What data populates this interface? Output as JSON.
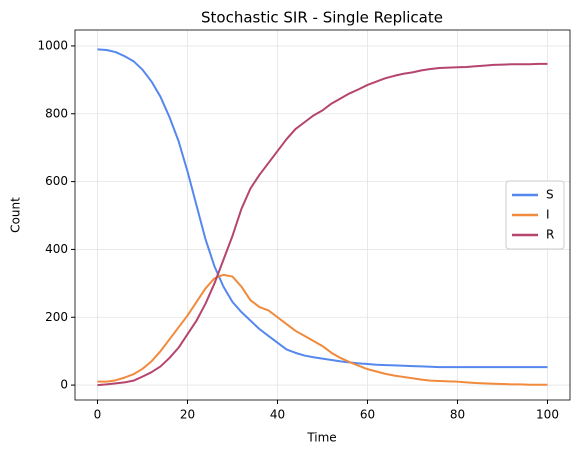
{
  "chart_data": {
    "type": "line",
    "title": "Stochastic SIR - Single Replicate",
    "x_label": "Time",
    "y_label": "Count",
    "x": [
      0,
      2,
      4,
      6,
      8,
      10,
      12,
      14,
      16,
      18,
      20,
      22,
      24,
      26,
      28,
      30,
      32,
      34,
      36,
      38,
      40,
      42,
      44,
      46,
      48,
      50,
      52,
      54,
      56,
      58,
      60,
      62,
      64,
      66,
      68,
      70,
      72,
      74,
      76,
      78,
      80,
      82,
      84,
      86,
      88,
      90,
      92,
      94,
      96,
      98,
      100
    ],
    "series": [
      {
        "name": "S",
        "color": "#5588ee",
        "values": [
          990,
          988,
          982,
          970,
          955,
          930,
          895,
          850,
          790,
          720,
          630,
          530,
          430,
          350,
          290,
          245,
          215,
          190,
          165,
          145,
          125,
          105,
          95,
          87,
          82,
          78,
          74,
          70,
          67,
          64,
          62,
          60,
          59,
          58,
          57,
          56,
          55,
          54,
          53,
          53,
          53,
          53,
          53,
          53,
          53,
          53,
          53,
          53,
          53,
          53,
          53
        ]
      },
      {
        "name": "I",
        "color": "#f08a3c",
        "values": [
          10,
          10,
          14,
          22,
          32,
          48,
          70,
          100,
          135,
          170,
          205,
          245,
          285,
          315,
          325,
          320,
          290,
          250,
          230,
          220,
          200,
          180,
          160,
          145,
          130,
          115,
          95,
          80,
          68,
          57,
          47,
          40,
          33,
          28,
          24,
          20,
          16,
          13,
          12,
          11,
          10,
          8,
          6,
          5,
          4,
          3,
          2,
          2,
          1,
          1,
          1
        ]
      },
      {
        "name": "R",
        "color": "#b5456f",
        "values": [
          0,
          2,
          5,
          8,
          13,
          25,
          38,
          55,
          80,
          110,
          150,
          190,
          240,
          300,
          370,
          440,
          520,
          580,
          620,
          655,
          690,
          725,
          755,
          775,
          795,
          810,
          830,
          845,
          860,
          872,
          885,
          895,
          905,
          912,
          918,
          922,
          928,
          932,
          935,
          936,
          937,
          938,
          940,
          942,
          944,
          945,
          946,
          946,
          946,
          947,
          947
        ]
      }
    ],
    "xlim": [
      -5,
      105
    ],
    "ylim": [
      -44,
      1047
    ],
    "xticks": [
      0,
      20,
      40,
      60,
      80,
      100
    ],
    "yticks": [
      0,
      200,
      400,
      600,
      800,
      1000
    ],
    "grid": true,
    "legend": "center right"
  }
}
